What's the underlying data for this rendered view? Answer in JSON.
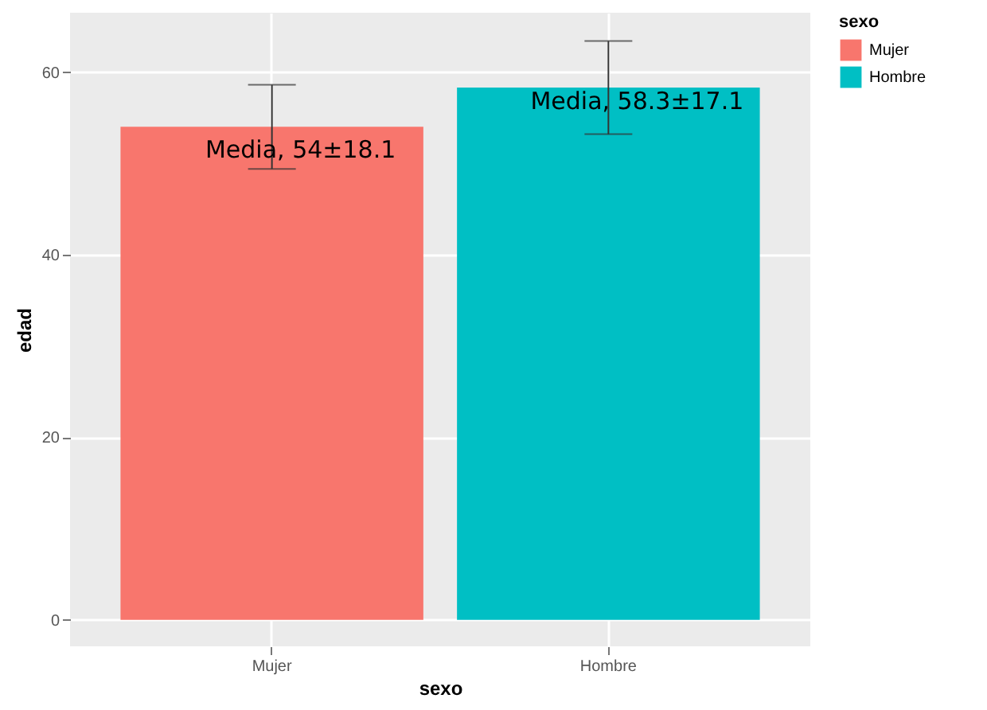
{
  "chart_data": {
    "type": "bar",
    "categories": [
      "Mujer",
      "Hombre"
    ],
    "series": [
      {
        "name": "Mujer",
        "color": "#f8766d",
        "values": [
          54,
          null
        ],
        "errors": [
          4.6,
          null
        ]
      },
      {
        "name": "Hombre",
        "color": "#00bfc4",
        "values": [
          null,
          58.3
        ],
        "errors": [
          null,
          5.1
        ]
      }
    ],
    "xlabel": "sexo",
    "ylabel": "edad",
    "legend_title": "sexo",
    "legend": "right",
    "ylim": [
      -2.9,
      66.5
    ],
    "yticks": [
      0,
      20,
      40,
      60
    ],
    "grid": true,
    "annotations": [
      {
        "text": "Media, 54±18.1",
        "x": "Mujer",
        "y": 51.5
      },
      {
        "text": "Media, 58.3±17.1",
        "x": "Hombre",
        "y": 56.8
      }
    ]
  }
}
